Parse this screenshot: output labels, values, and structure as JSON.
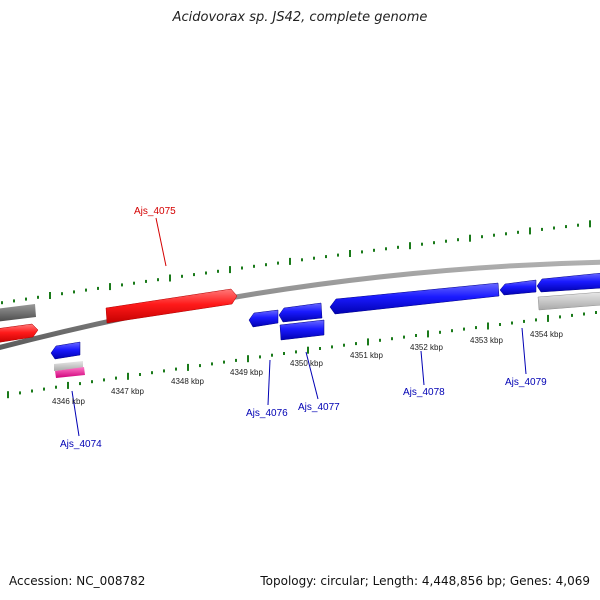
{
  "title": "Acidovorax sp. JS42, complete genome",
  "footer": {
    "accession": "Accession: NC_008782",
    "summary": "Topology: circular; Length: 4,448,856 bp; Genes: 4,069"
  },
  "ticks": [
    "4346 kbp",
    "4347 kbp",
    "4348 kbp",
    "4349 kbp",
    "4350 kbp",
    "4351 kbp",
    "4352 kbp",
    "4353 kbp",
    "4354 kbp"
  ],
  "gene_labels": [
    {
      "name": "Ajs_4075",
      "color": "#d40000"
    },
    {
      "name": "Ajs_4074",
      "color": "#0000b4"
    },
    {
      "name": "Ajs_4076",
      "color": "#0000b4"
    },
    {
      "name": "Ajs_4077",
      "color": "#0000b4"
    },
    {
      "name": "Ajs_4078",
      "color": "#0000b4"
    },
    {
      "name": "Ajs_4079",
      "color": "#0000b4"
    }
  ],
  "colors": {
    "forward_gene": "#ff1a1a",
    "reverse_gene": "#1a1aff",
    "backbone": "#8a8a8a",
    "tick_mark": "#1a7a1a",
    "grey_gene": "#6a6a6a",
    "light_grey_gene": "#c8c8c8",
    "pink_gene": "#ff2aa0"
  }
}
